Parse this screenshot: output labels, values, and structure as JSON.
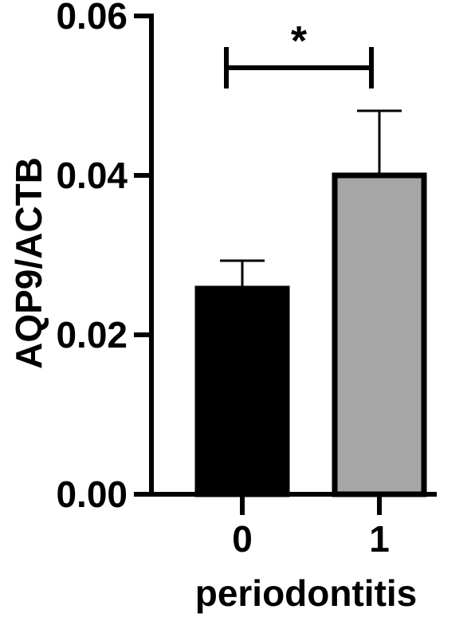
{
  "chart_data": {
    "type": "bar",
    "title": "",
    "xlabel": "periodontitis",
    "ylabel": "AQP9/ACTB",
    "categories": [
      "0",
      "1"
    ],
    "values": [
      0.0258,
      0.04
    ],
    "errors": [
      0.0035,
      0.0081
    ],
    "bar_colors": [
      "#000000",
      "#a6a6a6"
    ],
    "bar_outline_color": "#000000",
    "ylim": [
      0,
      0.06
    ],
    "yticks": [
      0.0,
      0.02,
      0.04,
      0.06
    ],
    "ytick_labels": [
      "0.00",
      "0.02",
      "0.04",
      "0.06"
    ],
    "grid": false,
    "legend": "none",
    "significance": {
      "label": "*",
      "between": [
        "0",
        "1"
      ],
      "y": 0.0535
    }
  }
}
